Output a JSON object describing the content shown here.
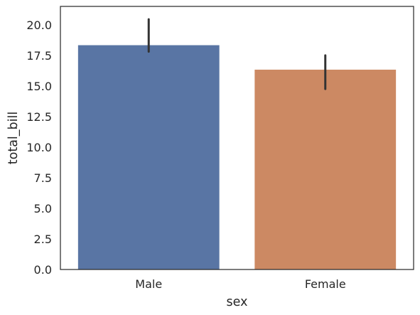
{
  "chart_data": {
    "type": "bar",
    "categories": [
      "Male",
      "Female"
    ],
    "values": [
      18.33,
      16.33
    ],
    "error_bars": [
      {
        "low": 17.8,
        "high": 20.45
      },
      {
        "low": 14.75,
        "high": 17.5
      }
    ],
    "colors": [
      "#5975a4",
      "#cc8963"
    ],
    "errorbar_color": "#333333",
    "axes_color": "#262626",
    "xlabel": "sex",
    "ylabel": "total_bill",
    "ylim": [
      0,
      21.5
    ],
    "yticks": [
      0,
      2.5,
      5,
      7.5,
      10,
      12.5,
      15,
      17.5,
      20
    ],
    "ytick_labels": [
      "0.0",
      "2.5",
      "5.0",
      "7.5",
      "10.0",
      "12.5",
      "15.0",
      "17.5",
      "20.0"
    ],
    "grid": false,
    "legend": "none"
  }
}
